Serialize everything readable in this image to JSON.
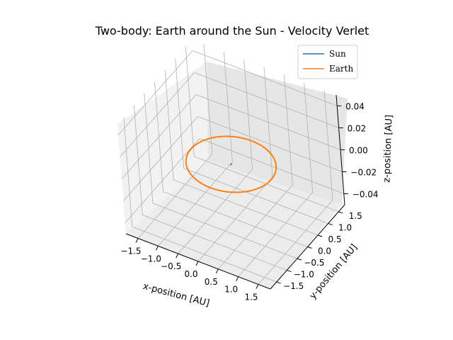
{
  "chart_data": {
    "type": "line",
    "projection": "3d",
    "title": "Two-body: Earth around the Sun - Velocity Verlet",
    "xlabel": "x-position [AU]",
    "ylabel": "y-position [AU]",
    "zlabel": "z-position [AU]",
    "xlim": [
      -1.8,
      1.8
    ],
    "ylim": [
      -1.8,
      1.8
    ],
    "zlim": [
      -0.05,
      0.05
    ],
    "x_ticks": [
      "−1.5",
      "−1.0",
      "−0.5",
      "0.0",
      "0.5",
      "1.0",
      "1.5"
    ],
    "y_ticks": [
      "−1.5",
      "−1.0",
      "−0.5",
      "0.0",
      "0.5",
      "1.0",
      "1.5"
    ],
    "z_ticks": [
      "−0.04",
      "−0.02",
      "0.00",
      "0.02",
      "0.04"
    ],
    "grid": true,
    "legend_position": "top-right",
    "series": [
      {
        "name": "Sun",
        "color": "#1f77b4",
        "orbit": {
          "radius": 0.0,
          "z": 0.0
        }
      },
      {
        "name": "Earth",
        "color": "#ff7f0e",
        "orbit": {
          "radius": 1.0,
          "z": 0.0
        }
      }
    ]
  }
}
